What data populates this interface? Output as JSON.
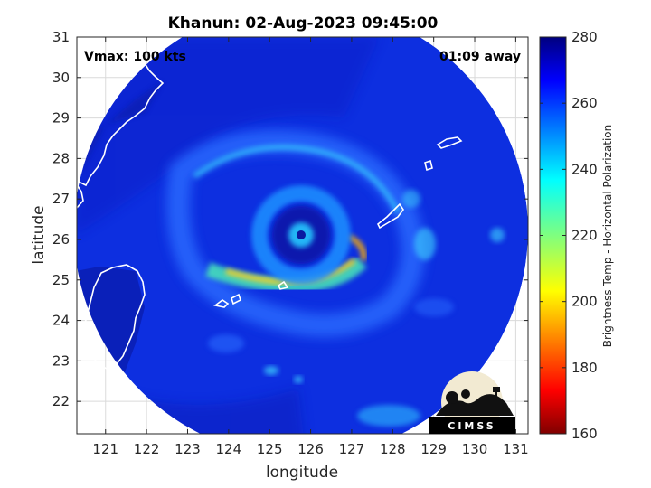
{
  "title": "Khanun: 02-Aug-2023 09:45:00",
  "annotations": {
    "vmax": "Vmax: 100 kts",
    "time_away": "01:09 away"
  },
  "axes": {
    "xlabel": "longitude",
    "ylabel": "latitude",
    "xticks": [
      "121",
      "122",
      "123",
      "124",
      "125",
      "126",
      "127",
      "128",
      "129",
      "130",
      "131"
    ],
    "yticks": [
      "31",
      "30",
      "29",
      "28",
      "27",
      "26",
      "25",
      "24",
      "23",
      "22"
    ],
    "xlim": [
      120.3,
      131.3
    ],
    "ylim": [
      21.2,
      31.0
    ]
  },
  "colorbar": {
    "label": "Brightness Temp - Horizontal Polarization",
    "ticks": [
      "280",
      "260",
      "240",
      "220",
      "200",
      "180",
      "160"
    ],
    "range": [
      160,
      280
    ],
    "colormap": "jet"
  },
  "storm_center": {
    "lon": 125.85,
    "lat": 26.05
  },
  "logo": {
    "text": "CIMSS"
  },
  "colors": {
    "background": "#ffffff",
    "coast": "#ffffff",
    "grid": "#d9d9d9"
  }
}
